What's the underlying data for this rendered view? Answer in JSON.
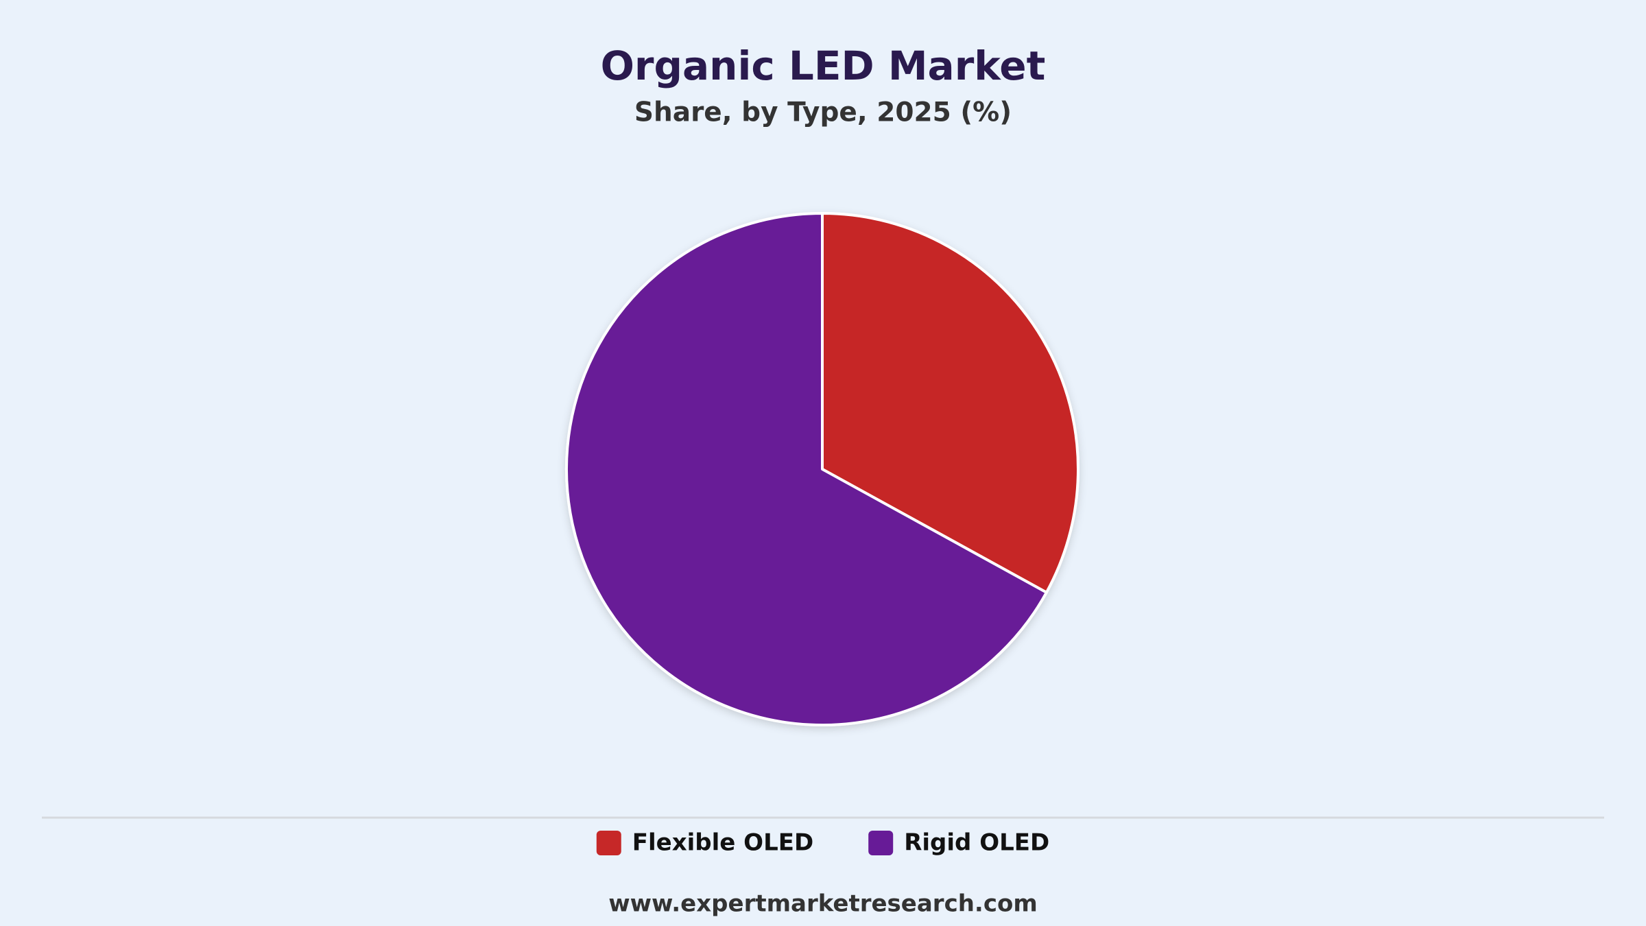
{
  "chart_data": {
    "type": "pie",
    "title": "Organic LED Market",
    "subtitle": "Share, by Type, 2025 (%)",
    "categories": [
      "Flexible OLED",
      "Rigid OLED"
    ],
    "values": [
      33,
      67
    ],
    "colors": [
      "#c62828",
      "#671b97"
    ],
    "legend": "bottom"
  },
  "footer": "www.expertmarketresearch.com"
}
